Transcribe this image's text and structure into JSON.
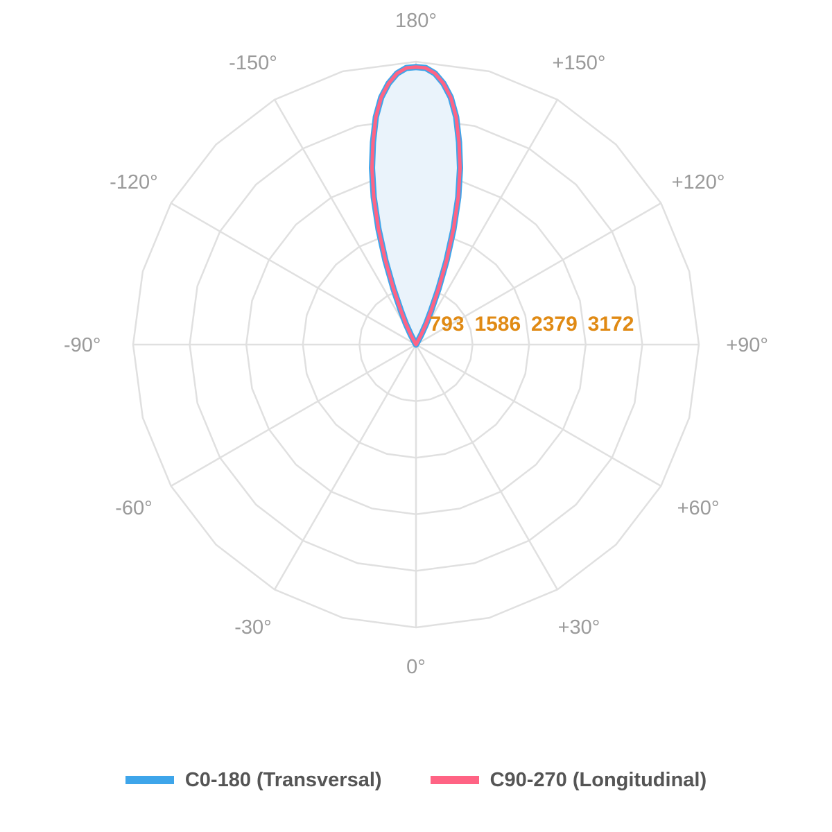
{
  "chart_data": {
    "type": "polar",
    "angle_labels": [
      "0°",
      "+30°",
      "+60°",
      "+90°",
      "+120°",
      "+150°",
      "180°",
      "-150°",
      "-120°",
      "-90°",
      "-60°",
      "-30°"
    ],
    "angle_values": [
      0,
      30,
      60,
      90,
      120,
      150,
      180,
      -150,
      -120,
      -90,
      -60,
      -30
    ],
    "ring_values": [
      793,
      1586,
      2379,
      3172
    ],
    "ring_labels": [
      "793",
      "1586",
      "2379",
      "3172"
    ],
    "rmax": 3965,
    "grid": true,
    "legend_position": "bottom",
    "series": [
      {
        "name": "C0-180 (Transversal)",
        "color": "#3ea5ea",
        "points": [
          {
            "angle": 150,
            "value": 20
          },
          {
            "angle": 152,
            "value": 150
          },
          {
            "angle": 154,
            "value": 330
          },
          {
            "angle": 156,
            "value": 520
          },
          {
            "angle": 158,
            "value": 840
          },
          {
            "angle": 160,
            "value": 1250
          },
          {
            "angle": 162,
            "value": 1700
          },
          {
            "angle": 164,
            "value": 2150
          },
          {
            "angle": 166,
            "value": 2550
          },
          {
            "angle": 168,
            "value": 2900
          },
          {
            "angle": 170,
            "value": 3240
          },
          {
            "angle": 172,
            "value": 3500
          },
          {
            "angle": 174,
            "value": 3680
          },
          {
            "angle": 176,
            "value": 3810
          },
          {
            "angle": 178,
            "value": 3880
          },
          {
            "angle": 180,
            "value": 3890
          },
          {
            "angle": -178,
            "value": 3880
          },
          {
            "angle": -176,
            "value": 3810
          },
          {
            "angle": -174,
            "value": 3680
          },
          {
            "angle": -172,
            "value": 3500
          },
          {
            "angle": -170,
            "value": 3240
          },
          {
            "angle": -168,
            "value": 2900
          },
          {
            "angle": -166,
            "value": 2550
          },
          {
            "angle": -164,
            "value": 2150
          },
          {
            "angle": -162,
            "value": 1700
          },
          {
            "angle": -160,
            "value": 1250
          },
          {
            "angle": -158,
            "value": 840
          },
          {
            "angle": -156,
            "value": 520
          },
          {
            "angle": -154,
            "value": 330
          },
          {
            "angle": -152,
            "value": 150
          },
          {
            "angle": -150,
            "value": 20
          }
        ]
      },
      {
        "name": "C90-270 (Longitudinal)",
        "color": "#ff6384",
        "points": [
          {
            "angle": 150,
            "value": 20
          },
          {
            "angle": 152,
            "value": 150
          },
          {
            "angle": 154,
            "value": 330
          },
          {
            "angle": 156,
            "value": 520
          },
          {
            "angle": 158,
            "value": 840
          },
          {
            "angle": 160,
            "value": 1250
          },
          {
            "angle": 162,
            "value": 1700
          },
          {
            "angle": 164,
            "value": 2150
          },
          {
            "angle": 166,
            "value": 2550
          },
          {
            "angle": 168,
            "value": 2900
          },
          {
            "angle": 170,
            "value": 3240
          },
          {
            "angle": 172,
            "value": 3500
          },
          {
            "angle": 174,
            "value": 3680
          },
          {
            "angle": 176,
            "value": 3810
          },
          {
            "angle": 178,
            "value": 3880
          },
          {
            "angle": 180,
            "value": 3890
          },
          {
            "angle": -178,
            "value": 3880
          },
          {
            "angle": -176,
            "value": 3810
          },
          {
            "angle": -174,
            "value": 3680
          },
          {
            "angle": -172,
            "value": 3500
          },
          {
            "angle": -170,
            "value": 3240
          },
          {
            "angle": -168,
            "value": 2900
          },
          {
            "angle": -166,
            "value": 2550
          },
          {
            "angle": -164,
            "value": 2150
          },
          {
            "angle": -162,
            "value": 1700
          },
          {
            "angle": -160,
            "value": 1250
          },
          {
            "angle": -158,
            "value": 840
          },
          {
            "angle": -156,
            "value": 520
          },
          {
            "angle": -154,
            "value": 330
          },
          {
            "angle": -152,
            "value": 150
          },
          {
            "angle": -150,
            "value": 20
          }
        ]
      }
    ],
    "colors": {
      "grid": "#e0e0e0",
      "angle_label": "#9a9a9a",
      "ring_label": "#e08a14",
      "fill": "#eaf3fb",
      "legend_text": "#555555"
    }
  },
  "legend": {
    "items": [
      {
        "label": "C0-180 (Transversal)",
        "color": "#3ea5ea"
      },
      {
        "label": "C90-270 (Longitudinal)",
        "color": "#ff6384"
      }
    ]
  }
}
